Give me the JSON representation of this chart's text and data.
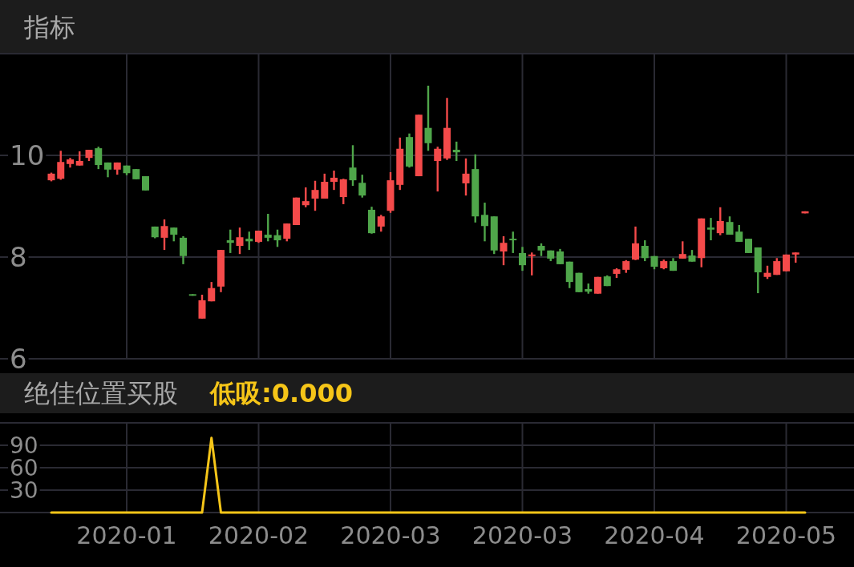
{
  "chart_data": [
    {
      "type": "candlestick",
      "title": "指标",
      "categories": [
        null,
        null,
        null,
        null,
        null,
        null,
        null,
        null,
        "2020-01",
        null,
        null,
        null,
        null,
        null,
        null,
        null,
        null,
        null,
        null,
        null,
        null,
        null,
        "2020-02",
        null,
        null,
        null,
        null,
        null,
        null,
        null,
        null,
        null,
        null,
        null,
        null,
        null,
        "2020-03",
        null,
        null,
        null,
        null,
        null,
        null,
        null,
        null,
        null,
        null,
        null,
        null,
        null,
        "2020-03",
        null,
        null,
        null,
        null,
        null,
        null,
        null,
        null,
        null,
        null,
        null,
        null,
        null,
        "2020-04",
        null,
        null,
        null,
        null,
        null,
        null,
        null,
        null,
        null,
        null,
        null,
        null,
        null,
        "2020-05",
        null,
        null
      ],
      "ohlc": [
        [
          9.51,
          9.66,
          9.49,
          9.64
        ],
        [
          9.54,
          10.09,
          9.52,
          9.87
        ],
        [
          9.83,
          9.95,
          9.76,
          9.92
        ],
        [
          9.8,
          10.08,
          9.8,
          9.89
        ],
        [
          9.95,
          10.11,
          9.89,
          10.11
        ],
        [
          10.14,
          10.17,
          9.73,
          9.81
        ],
        [
          9.86,
          9.86,
          9.57,
          9.72
        ],
        [
          9.72,
          9.86,
          9.62,
          9.86
        ],
        [
          9.8,
          9.8,
          9.61,
          9.65
        ],
        [
          9.73,
          9.73,
          9.53,
          9.53
        ],
        [
          9.59,
          9.59,
          9.31,
          9.31
        ],
        [
          8.6,
          8.6,
          8.37,
          8.39
        ],
        [
          8.38,
          8.74,
          8.14,
          8.61
        ],
        [
          8.58,
          8.58,
          8.31,
          8.44
        ],
        [
          8.38,
          8.41,
          7.86,
          8.02
        ],
        [
          7.27,
          7.27,
          7.24,
          7.24
        ],
        [
          6.79,
          7.26,
          6.79,
          7.15
        ],
        [
          7.13,
          7.51,
          7.13,
          7.39
        ],
        [
          7.42,
          8.14,
          7.31,
          8.14
        ],
        [
          8.33,
          8.54,
          8.08,
          8.28
        ],
        [
          8.22,
          8.58,
          8.06,
          8.39
        ],
        [
          8.36,
          8.5,
          8.14,
          8.31
        ],
        [
          8.3,
          8.52,
          8.28,
          8.52
        ],
        [
          8.44,
          8.85,
          8.31,
          8.38
        ],
        [
          8.43,
          8.54,
          8.2,
          8.33
        ],
        [
          8.36,
          8.66,
          8.31,
          8.66
        ],
        [
          8.63,
          9.17,
          8.63,
          9.17
        ],
        [
          9.02,
          9.37,
          8.98,
          9.1
        ],
        [
          9.15,
          9.5,
          8.91,
          9.32
        ],
        [
          9.15,
          9.64,
          9.15,
          9.48
        ],
        [
          9.48,
          9.7,
          9.32,
          9.56
        ],
        [
          9.18,
          9.54,
          9.04,
          9.53
        ],
        [
          9.76,
          10.2,
          9.4,
          9.51
        ],
        [
          9.46,
          9.62,
          9.17,
          9.21
        ],
        [
          8.93,
          8.99,
          8.46,
          8.47
        ],
        [
          8.6,
          8.83,
          8.5,
          8.8
        ],
        [
          8.91,
          9.67,
          8.87,
          9.51
        ],
        [
          9.42,
          10.35,
          9.32,
          10.13
        ],
        [
          10.36,
          10.43,
          9.76,
          9.78
        ],
        [
          9.59,
          10.8,
          9.59,
          10.8
        ],
        [
          10.54,
          11.37,
          10.09,
          10.24
        ],
        [
          9.89,
          10.17,
          9.29,
          10.13
        ],
        [
          9.94,
          11.13,
          9.91,
          10.54
        ],
        [
          10.11,
          10.27,
          9.89,
          10.06
        ],
        [
          9.45,
          9.94,
          9.21,
          9.64
        ],
        [
          9.73,
          10.02,
          8.68,
          8.8
        ],
        [
          8.83,
          9.07,
          8.31,
          8.61
        ],
        [
          8.8,
          8.8,
          8.06,
          8.13
        ],
        [
          8.11,
          8.41,
          7.84,
          8.28
        ],
        [
          8.36,
          8.5,
          8.08,
          8.33
        ],
        [
          8.08,
          8.2,
          7.73,
          7.84
        ],
        [
          8.02,
          8.09,
          7.64,
          8.05
        ],
        [
          8.22,
          8.27,
          8.02,
          8.13
        ],
        [
          8.13,
          8.13,
          7.92,
          7.97
        ],
        [
          8.11,
          8.16,
          7.86,
          7.86
        ],
        [
          7.91,
          7.91,
          7.39,
          7.51
        ],
        [
          7.69,
          7.69,
          7.31,
          7.31
        ],
        [
          7.37,
          7.48,
          7.28,
          7.32
        ],
        [
          7.28,
          7.61,
          7.28,
          7.61
        ],
        [
          7.62,
          7.64,
          7.43,
          7.43
        ],
        [
          7.67,
          7.78,
          7.59,
          7.76
        ],
        [
          7.75,
          7.94,
          7.69,
          7.92
        ],
        [
          7.95,
          8.6,
          7.94,
          8.27
        ],
        [
          8.22,
          8.33,
          7.92,
          7.98
        ],
        [
          8.02,
          8.02,
          7.76,
          7.81
        ],
        [
          7.78,
          7.95,
          7.76,
          7.92
        ],
        [
          7.92,
          7.98,
          7.73,
          7.73
        ],
        [
          7.97,
          8.31,
          7.97,
          8.06
        ],
        [
          8.03,
          8.14,
          7.91,
          7.91
        ],
        [
          7.98,
          8.76,
          7.8,
          8.76
        ],
        [
          8.58,
          8.77,
          8.33,
          8.54
        ],
        [
          8.47,
          8.98,
          8.43,
          8.71
        ],
        [
          8.69,
          8.8,
          8.44,
          8.44
        ],
        [
          8.5,
          8.63,
          8.3,
          8.3
        ],
        [
          8.36,
          8.36,
          8.08,
          8.08
        ],
        [
          8.19,
          8.19,
          7.29,
          7.7
        ],
        [
          7.61,
          7.83,
          7.57,
          7.69
        ],
        [
          7.65,
          7.98,
          7.65,
          7.92
        ],
        [
          7.72,
          8.05,
          7.72,
          8.05
        ],
        [
          8.05,
          8.09,
          7.89,
          8.09
        ],
        [
          8.86,
          8.9,
          8.86,
          8.9
        ]
      ],
      "colors": [
        "#f44a4a",
        "#f44a4a",
        "#f44a4a",
        "#f44a4a",
        "#f44a4a",
        "#4fa64a",
        "#4fa64a",
        "#f44a4a",
        "#4fa64a",
        "#4fa64a",
        "#4fa64a",
        "#4fa64a",
        "#f44a4a",
        "#4fa64a",
        "#4fa64a",
        "#4fa64a",
        "#f44a4a",
        "#f44a4a",
        "#f44a4a",
        "#4fa64a",
        "#f44a4a",
        "#4fa64a",
        "#f44a4a",
        "#4fa64a",
        "#4fa64a",
        "#f44a4a",
        "#f44a4a",
        "#f44a4a",
        "#f44a4a",
        "#f44a4a",
        "#f44a4a",
        "#f44a4a",
        "#4fa64a",
        "#4fa64a",
        "#4fa64a",
        "#f44a4a",
        "#f44a4a",
        "#f44a4a",
        "#4fa64a",
        "#f44a4a",
        "#4fa64a",
        "#f44a4a",
        "#f44a4a",
        "#4fa64a",
        "#f44a4a",
        "#4fa64a",
        "#4fa64a",
        "#4fa64a",
        "#f44a4a",
        "#4fa64a",
        "#4fa64a",
        "#f44a4a",
        "#4fa64a",
        "#4fa64a",
        "#4fa64a",
        "#4fa64a",
        "#4fa64a",
        "#4fa64a",
        "#f44a4a",
        "#4fa64a",
        "#f44a4a",
        "#f44a4a",
        "#f44a4a",
        "#4fa64a",
        "#4fa64a",
        "#f44a4a",
        "#4fa64a",
        "#f44a4a",
        "#4fa64a",
        "#f44a4a",
        "#4fa64a",
        "#f44a4a",
        "#4fa64a",
        "#4fa64a",
        "#4fa64a",
        "#4fa64a",
        "#f44a4a",
        "#f44a4a",
        "#f44a4a",
        "#f44a4a",
        "#f44a4a"
      ],
      "ylim": [
        6,
        12
      ],
      "yticks": [
        6,
        8,
        10,
        {
          "value": 12,
          "label": null
        }
      ],
      "grid": true,
      "tick_labels": "y"
    },
    {
      "type": "line",
      "title": "绝佳位置买股",
      "categories": [
        null,
        null,
        null,
        null,
        null,
        null,
        null,
        null,
        "2020-01",
        null,
        null,
        null,
        null,
        null,
        null,
        null,
        null,
        null,
        null,
        null,
        null,
        null,
        "2020-02",
        null,
        null,
        null,
        null,
        null,
        null,
        null,
        null,
        null,
        null,
        null,
        null,
        null,
        "2020-03",
        null,
        null,
        null,
        null,
        null,
        null,
        null,
        null,
        null,
        null,
        null,
        null,
        null,
        "2020-03",
        null,
        null,
        null,
        null,
        null,
        null,
        null,
        null,
        null,
        null,
        null,
        null,
        null,
        "2020-04",
        null,
        null,
        null,
        null,
        null,
        null,
        null,
        null,
        null,
        null,
        null,
        null,
        null,
        "2020-05",
        null,
        null
      ],
      "series": [
        {
          "name": "低吸",
          "color": "#f5c518",
          "values": [
            0,
            0,
            0,
            0,
            0,
            0,
            0,
            0,
            0,
            0,
            0,
            0,
            0,
            0,
            0,
            0,
            0,
            100,
            0,
            0,
            0,
            0,
            0,
            0,
            0,
            0,
            0,
            0,
            0,
            0,
            0,
            0,
            0,
            0,
            0,
            0,
            0,
            0,
            0,
            0,
            0,
            0,
            0,
            0,
            0,
            0,
            0,
            0,
            0,
            0,
            0,
            0,
            0,
            0,
            0,
            0,
            0,
            0,
            0,
            0,
            0,
            0,
            0,
            0,
            0,
            0,
            0,
            0,
            0,
            0,
            0,
            0,
            0,
            0,
            0,
            0,
            0,
            0,
            0,
            0,
            0
          ]
        }
      ],
      "annotations": [
        ":0.000"
      ],
      "ylim": [
        0,
        120
      ],
      "yticks": [
        {
          "value": 0,
          "label": null
        },
        30,
        60,
        90,
        {
          "value": 120,
          "label": null
        }
      ],
      "grid": true,
      "legend": "top left"
    }
  ]
}
